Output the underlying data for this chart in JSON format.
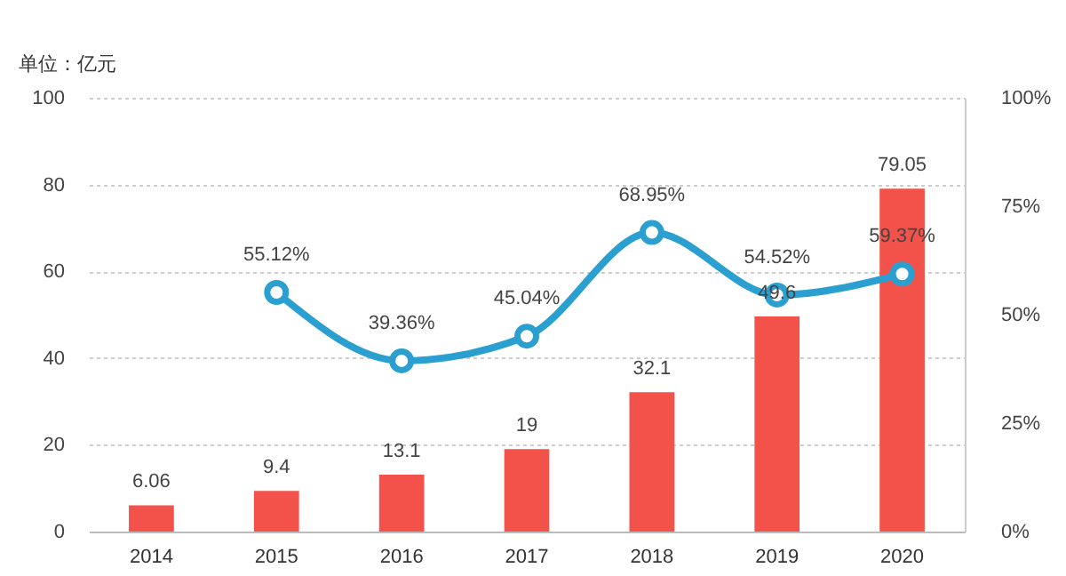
{
  "chart_data": {
    "type": "bar",
    "ylabel": "单位：亿元",
    "categories": [
      "2014",
      "2015",
      "2016",
      "2017",
      "2018",
      "2019",
      "2020"
    ],
    "series": [
      {
        "color": "#f2524a",
        "values": [
          6.06,
          9.4,
          13.1,
          19,
          32.1,
          49.6,
          79.05
        ],
        "value_labels": [
          "6.06",
          "9.4",
          "13.1",
          "19",
          "32.1",
          "49.6",
          "79.05"
        ]
      },
      {
        "type": "line",
        "axis": "y2",
        "color": "#2b9fd0",
        "values": [
          null,
          55.12,
          39.36,
          45.04,
          68.95,
          54.52,
          59.37
        ],
        "value_labels": [
          null,
          "55.12%",
          "39.36%",
          "45.04%",
          "68.95%",
          "54.52%",
          "59.37%"
        ]
      }
    ],
    "ylim": [
      0,
      100
    ],
    "yticks": [
      0,
      20,
      40,
      60,
      80,
      100
    ],
    "y2lim": [
      0,
      100
    ],
    "y2ticks": [
      {
        "value": 0,
        "label": "0%"
      },
      {
        "value": 25,
        "label": "25%"
      },
      {
        "value": 50,
        "label": "50%"
      },
      {
        "value": 75,
        "label": "75%"
      },
      {
        "value": 100,
        "label": "100%"
      }
    ],
    "grid": "y",
    "marker": "circle",
    "line_style": "solid"
  }
}
